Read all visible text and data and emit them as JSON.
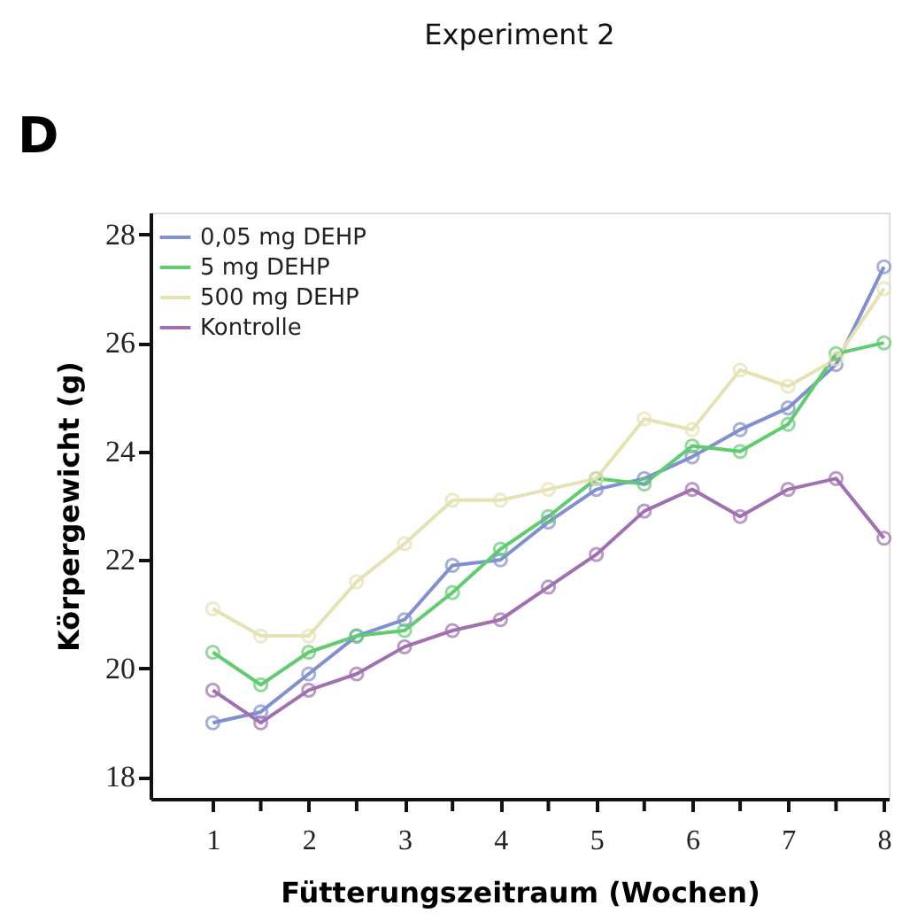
{
  "chart_data": {
    "type": "line",
    "title": "Experiment 2",
    "xlabel": "Fütterungszeitraum (Wochen)",
    "ylabel": "Körpergewicht (g)",
    "annotations": [
      "D"
    ],
    "x": [
      1,
      1.5,
      2,
      2.5,
      3,
      3.5,
      4,
      4.5,
      5,
      5.5,
      6,
      6.5,
      7,
      7.5,
      8
    ],
    "series": [
      {
        "name": "0,05 mg DEHP",
        "color": "#8090d0",
        "values": [
          19.0,
          19.2,
          19.9,
          20.6,
          20.9,
          21.9,
          22.0,
          22.7,
          23.3,
          23.5,
          23.9,
          24.4,
          24.8,
          25.6,
          27.4
        ]
      },
      {
        "name": "5 mg DEHP",
        "color": "#60cc70",
        "values": [
          20.3,
          19.7,
          20.3,
          20.6,
          20.7,
          21.4,
          22.2,
          22.8,
          23.5,
          23.4,
          24.1,
          24.0,
          24.5,
          25.8,
          26.0
        ]
      },
      {
        "name": "500 mg DEHP",
        "color": "#e6e2b4",
        "values": [
          21.1,
          20.6,
          20.6,
          21.6,
          22.3,
          23.1,
          23.1,
          23.3,
          23.5,
          24.6,
          24.4,
          25.5,
          25.2,
          25.7,
          27.0
        ]
      },
      {
        "name": "Kontrolle",
        "color": "#a070b0",
        "values": [
          19.6,
          19.0,
          19.6,
          19.9,
          20.4,
          20.7,
          20.9,
          21.5,
          22.1,
          22.9,
          23.3,
          22.8,
          23.3,
          23.5,
          22.4
        ]
      }
    ],
    "xlim": [
      0.35,
      8.05
    ],
    "ylim": [
      17.6,
      28.4
    ],
    "xticks": [
      1,
      {
        "value": 1.5,
        "label": null
      },
      2,
      {
        "value": 2.5,
        "label": null
      },
      3,
      {
        "value": 3.5,
        "label": null
      },
      4,
      {
        "value": 4.5,
        "label": null
      },
      5,
      {
        "value": 5.5,
        "label": null
      },
      6,
      {
        "value": 6.5,
        "label": null
      },
      7,
      {
        "value": 7.5,
        "label": null
      },
      8
    ],
    "yticks": [
      18,
      20,
      22,
      24,
      26,
      28
    ],
    "grid": false,
    "legend": "top left",
    "marker": "circle",
    "line_style": "solid"
  }
}
